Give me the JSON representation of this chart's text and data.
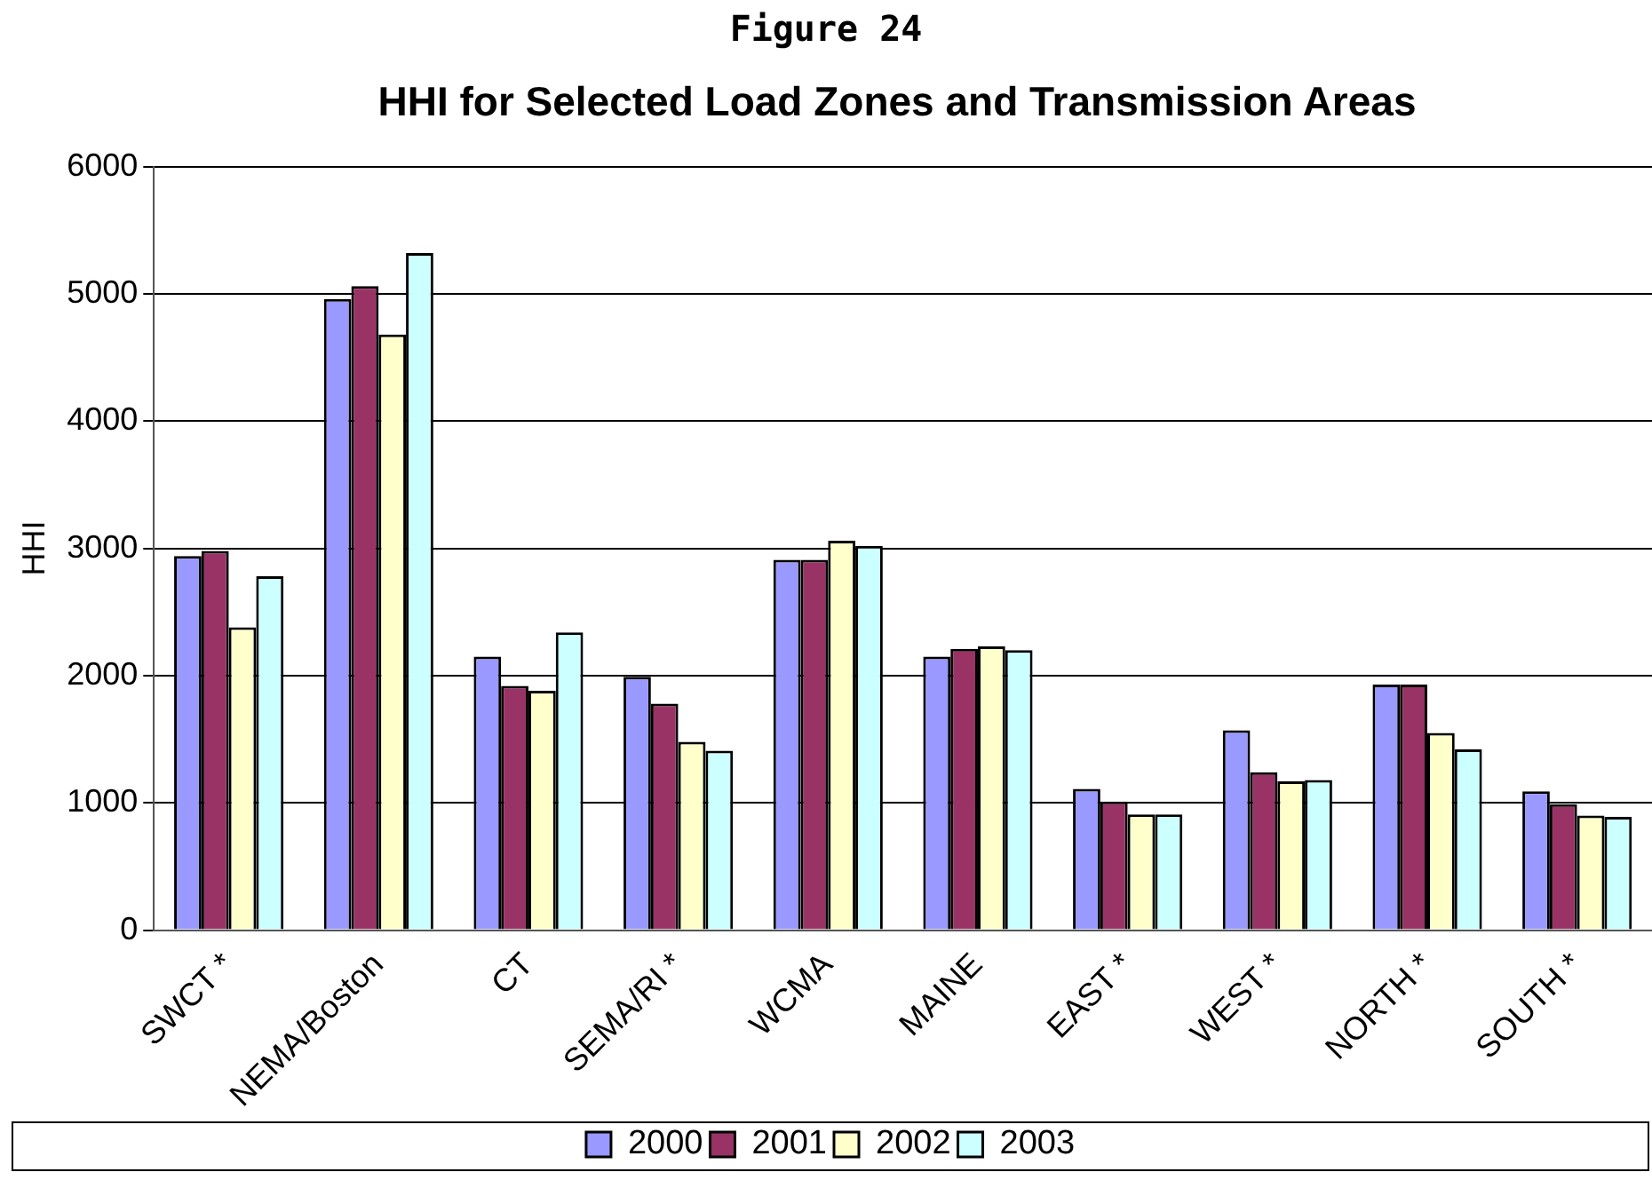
{
  "chart_data": {
    "type": "bar",
    "title": "Figure 24",
    "subtitle": "HHI for Selected Load Zones and Transmission Areas",
    "ylabel": "HHI",
    "categories": [
      "SWCT *",
      "NEMA/Boston",
      "CT",
      "SEMA/RI *",
      "WCMA",
      "MAINE",
      "EAST *",
      "WEST *",
      "NORTH *",
      "SOUTH *"
    ],
    "series": [
      {
        "name": "2000",
        "color": "#9999ff",
        "values": [
          2940,
          4960,
          2150,
          1990,
          2910,
          2150,
          1110,
          1570,
          1930,
          1090
        ]
      },
      {
        "name": "2001",
        "color": "#993366",
        "values": [
          2980,
          5060,
          1920,
          1780,
          2910,
          2210,
          1010,
          1240,
          1930,
          990
        ]
      },
      {
        "name": "2002",
        "color": "#ffffcc",
        "values": [
          2380,
          4680,
          1880,
          1480,
          3060,
          2230,
          910,
          1170,
          1550,
          900
        ]
      },
      {
        "name": "2003",
        "color": "#ccffff",
        "values": [
          2780,
          5320,
          2340,
          1410,
          3020,
          2200,
          910,
          1180,
          1420,
          890
        ]
      }
    ],
    "ylim": [
      0,
      6000
    ],
    "yticks": [
      0,
      1000,
      2000,
      3000,
      4000,
      5000,
      6000
    ],
    "grid": "y",
    "legend": "bottom"
  }
}
